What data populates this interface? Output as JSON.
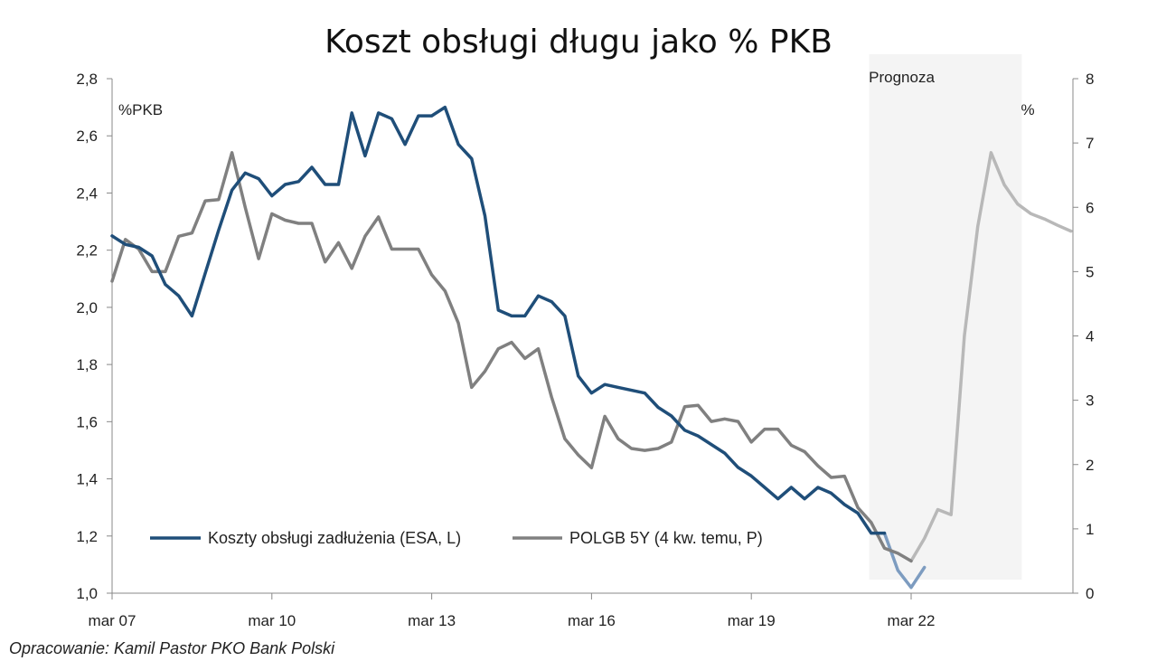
{
  "chart_data": {
    "type": "line",
    "title": "Koszt obsługi długu jako % PKB",
    "left_axis_unit": "%PKB",
    "right_axis_unit": "%",
    "forecast_label": "Prognoza",
    "source_note": "Opracowanie: Kamil Pastor PKO Bank Polski",
    "x_tick_labels": [
      "mar 07",
      "mar 10",
      "mar 13",
      "mar 16",
      "mar 19",
      "mar 22"
    ],
    "left_ylim": [
      1.0,
      2.8
    ],
    "left_ticks": [
      "1,0",
      "1,2",
      "1,4",
      "1,6",
      "1,8",
      "2,0",
      "2,2",
      "2,4",
      "2,6",
      "2,8"
    ],
    "right_ylim": [
      0,
      8
    ],
    "right_ticks": [
      "0",
      "1",
      "2",
      "3",
      "4",
      "5",
      "6",
      "7",
      "8"
    ],
    "forecast_start_quarter": 58,
    "forecast_end_quarter": 70,
    "legend_position": "bottom-left",
    "colors": {
      "debt_cost": "#1f4e79",
      "polgb": "#808080",
      "forecast_band": "#f4f4f4"
    },
    "series": [
      {
        "name": "Koszty obsługi zadłużenia (ESA, L)",
        "axis": "left",
        "values": [
          2.25,
          2.22,
          2.21,
          2.18,
          2.08,
          2.04,
          1.97,
          2.12,
          2.27,
          2.41,
          2.47,
          2.45,
          2.39,
          2.43,
          2.44,
          2.49,
          2.43,
          2.43,
          2.68,
          2.53,
          2.68,
          2.66,
          2.57,
          2.67,
          2.67,
          2.7,
          2.57,
          2.52,
          2.32,
          1.99,
          1.97,
          1.97,
          2.04,
          2.02,
          1.97,
          1.76,
          1.7,
          1.73,
          1.72,
          1.71,
          1.7,
          1.65,
          1.62,
          1.57,
          1.55,
          1.52,
          1.49,
          1.44,
          1.41,
          1.37,
          1.33,
          1.37,
          1.33,
          1.37,
          1.35,
          1.31,
          1.28,
          1.21,
          1.21,
          null,
          null,
          null
        ]
      },
      {
        "name": "POLGB 5Y (4 kw. temu, P)",
        "axis": "right",
        "values": [
          4.85,
          5.5,
          5.35,
          5.0,
          5.0,
          5.55,
          5.6,
          6.1,
          6.12,
          6.85,
          6.0,
          5.2,
          5.9,
          5.8,
          5.75,
          5.75,
          5.15,
          5.45,
          5.05,
          5.55,
          5.85,
          5.35,
          5.35,
          5.35,
          4.95,
          4.7,
          4.2,
          3.2,
          3.45,
          3.8,
          3.9,
          3.65,
          3.8,
          3.05,
          2.4,
          2.15,
          1.95,
          2.75,
          2.4,
          2.25,
          2.22,
          2.25,
          2.35,
          2.9,
          2.92,
          2.67,
          2.71,
          2.67,
          2.35,
          2.55,
          2.55,
          2.3,
          2.2,
          1.98,
          1.8,
          1.82,
          1.33,
          1.1,
          0.7,
          0.62,
          0.5
        ]
      }
    ],
    "forecast_series": [
      {
        "axis": "left",
        "start_quarter": 58,
        "values": [
          1.21,
          1.08,
          1.02,
          1.09
        ]
      },
      {
        "axis": "right",
        "start_quarter": 60,
        "values": [
          0.5,
          0.85,
          1.3,
          1.22,
          4.0,
          5.7,
          6.85,
          6.35,
          6.05,
          5.9,
          5.82,
          5.72,
          5.63
        ]
      }
    ]
  }
}
